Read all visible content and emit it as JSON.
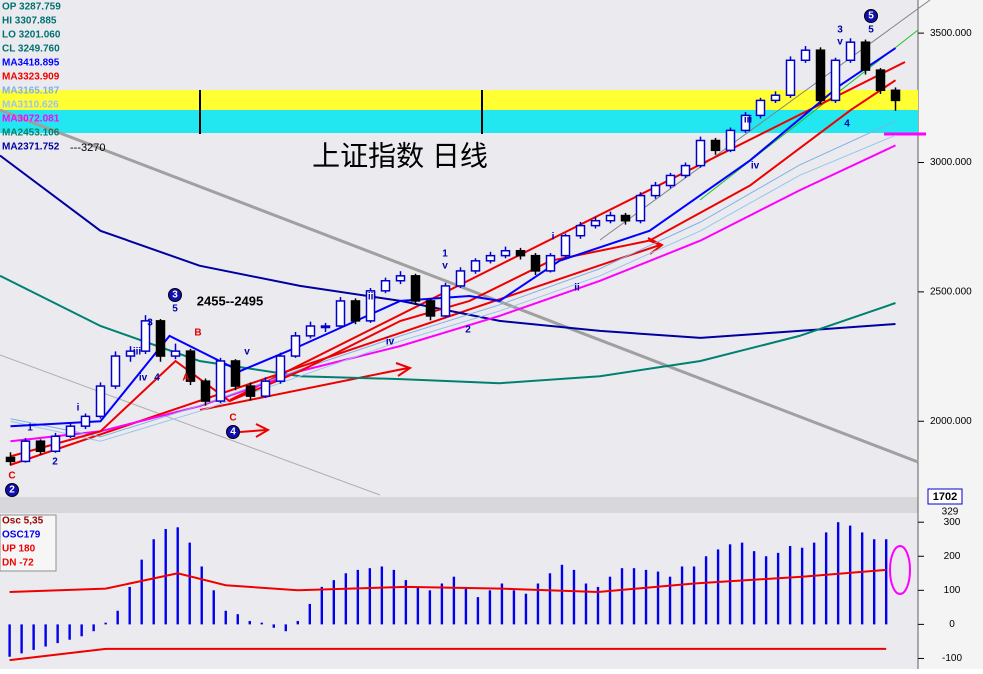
{
  "chart_data": [
    {
      "type": "candlestick",
      "title": "上证指数 日线",
      "range_label": "2455--2495",
      "level_label": "---3270",
      "value_tag": "1702",
      "header_lines": [
        "OP 3287.759",
        "HI 3307.885",
        "LO 3201.060",
        "CL 3249.760"
      ],
      "up_color": "#0000cc",
      "down_color": "#000000",
      "grid": false,
      "ylim": [
        1715,
        3628
      ],
      "yticks": [
        {
          "value": 3500,
          "label": "3500.000"
        },
        {
          "value": 3000,
          "label": "3000.000"
        },
        {
          "value": 2500,
          "label": "2500.000"
        },
        {
          "value": 2000,
          "label": "2000.000"
        }
      ],
      "xlim": [
        -0.7,
        60.3
      ],
      "ohlc": [
        [
          1860,
          1880,
          1830,
          1845
        ],
        [
          1845,
          1935,
          1840,
          1923
        ],
        [
          1923,
          1930,
          1870,
          1884
        ],
        [
          1884,
          1955,
          1878,
          1942
        ],
        [
          1942,
          1995,
          1935,
          1981
        ],
        [
          1981,
          2030,
          1970,
          2019
        ],
        [
          2019,
          2150,
          2010,
          2136
        ],
        [
          2136,
          2270,
          2125,
          2252
        ],
        [
          2252,
          2290,
          2230,
          2271
        ],
        [
          2271,
          2410,
          2260,
          2388
        ],
        [
          2388,
          2395,
          2230,
          2252
        ],
        [
          2252,
          2300,
          2240,
          2271
        ],
        [
          2271,
          2280,
          2140,
          2155
        ],
        [
          2155,
          2165,
          2060,
          2078
        ],
        [
          2078,
          2245,
          2070,
          2233
        ],
        [
          2233,
          2240,
          2120,
          2136
        ],
        [
          2136,
          2150,
          2080,
          2097
        ],
        [
          2097,
          2170,
          2090,
          2155
        ],
        [
          2155,
          2265,
          2145,
          2252
        ],
        [
          2252,
          2345,
          2245,
          2330
        ],
        [
          2330,
          2385,
          2320,
          2368
        ],
        [
          2368,
          2380,
          2345,
          2368
        ],
        [
          2368,
          2480,
          2360,
          2465
        ],
        [
          2465,
          2475,
          2375,
          2388
        ],
        [
          2388,
          2515,
          2380,
          2504
        ],
        [
          2504,
          2555,
          2495,
          2543
        ],
        [
          2543,
          2580,
          2530,
          2562
        ],
        [
          2562,
          2570,
          2450,
          2465
        ],
        [
          2465,
          2475,
          2390,
          2407
        ],
        [
          2407,
          2535,
          2400,
          2523
        ],
        [
          2523,
          2595,
          2515,
          2581
        ],
        [
          2581,
          2630,
          2570,
          2620
        ],
        [
          2620,
          2655,
          2610,
          2640
        ],
        [
          2640,
          2675,
          2630,
          2659
        ],
        [
          2659,
          2670,
          2625,
          2640
        ],
        [
          2640,
          2650,
          2565,
          2581
        ],
        [
          2581,
          2650,
          2575,
          2640
        ],
        [
          2640,
          2725,
          2630,
          2717
        ],
        [
          2717,
          2770,
          2705,
          2756
        ],
        [
          2756,
          2790,
          2745,
          2775
        ],
        [
          2775,
          2810,
          2765,
          2795
        ],
        [
          2795,
          2805,
          2760,
          2775
        ],
        [
          2775,
          2885,
          2765,
          2872
        ],
        [
          2872,
          2925,
          2860,
          2911
        ],
        [
          2911,
          2960,
          2900,
          2950
        ],
        [
          2950,
          3000,
          2940,
          2988
        ],
        [
          2988,
          3100,
          2980,
          3085
        ],
        [
          3085,
          3095,
          3030,
          3047
        ],
        [
          3047,
          3135,
          3040,
          3124
        ],
        [
          3124,
          3195,
          3115,
          3182
        ],
        [
          3182,
          3250,
          3170,
          3240
        ],
        [
          3240,
          3275,
          3230,
          3260
        ],
        [
          3260,
          3410,
          3250,
          3395
        ],
        [
          3395,
          3450,
          3385,
          3434
        ],
        [
          3434,
          3445,
          3225,
          3240
        ],
        [
          3240,
          3405,
          3230,
          3395
        ],
        [
          3395,
          3480,
          3385,
          3465
        ],
        [
          3465,
          3475,
          3340,
          3357
        ],
        [
          3357,
          3365,
          3265,
          3279
        ],
        [
          3279,
          3290,
          3200,
          3240
        ]
      ],
      "series": [
        {
          "name": "MA3418.895",
          "color": "#0000ff",
          "x": [
            0,
            6,
            10.6,
            15.3,
            19.3,
            26,
            30.6,
            32.6,
            36.6,
            42.6,
            49.3,
            55.3,
            59
          ],
          "values": [
            1981,
            2000,
            2330,
            2194,
            2291,
            2465,
            2484,
            2465,
            2620,
            2736,
            3008,
            3298,
            3442
          ]
        },
        {
          "name": "MA3323.909",
          "color": "#ee0000",
          "x": [
            0,
            6,
            11,
            14.6,
            19.3,
            26,
            30.6,
            36,
            42.6,
            49.3,
            56,
            59
          ],
          "values": [
            1864,
            1961,
            2233,
            2078,
            2194,
            2388,
            2465,
            2620,
            2698,
            2911,
            3202,
            3318
          ]
        },
        {
          "name": "MA3165.187",
          "color": "#7fb0e8",
          "x": [
            0,
            6,
            12.6,
            19.3,
            26,
            32.6,
            39.3,
            46,
            52.6,
            59
          ],
          "values": [
            2010,
            1940,
            2060,
            2200,
            2330,
            2450,
            2590,
            2770,
            2990,
            3160
          ]
        },
        {
          "name": "MA3110.626",
          "color": "#9cc4ee",
          "x": [
            0,
            6,
            12.6,
            19.3,
            26,
            32.6,
            39.3,
            46,
            52.6,
            59
          ],
          "values": [
            2000,
            1923,
            2039,
            2174,
            2310,
            2426,
            2562,
            2736,
            2950,
            3105
          ]
        },
        {
          "name": "MA3072.081",
          "color": "#ff00ff",
          "x": [
            0,
            6,
            12.6,
            19.3,
            26,
            32.6,
            39.3,
            46,
            52.6,
            59
          ],
          "values": [
            1923,
            1961,
            2058,
            2194,
            2291,
            2407,
            2543,
            2698,
            2892,
            3066
          ]
        },
        {
          "name": "MA2453.106",
          "color": "#008070",
          "x": [
            -0.7,
            6,
            12.6,
            19.3,
            26,
            32.6,
            39.3,
            46,
            52.6,
            59
          ],
          "values": [
            2562,
            2368,
            2233,
            2174,
            2163,
            2147,
            2174,
            2233,
            2330,
            2457
          ]
        },
        {
          "name": "MA2371.752",
          "color": "#0000a0",
          "x": [
            -0.7,
            6,
            12.6,
            19.3,
            26,
            32.6,
            39.3,
            46,
            52.6,
            59
          ],
          "values": [
            3027,
            2736,
            2601,
            2523,
            2465,
            2388,
            2349,
            2322,
            2349,
            2376
          ]
        }
      ],
      "annotations": [
        "C",
        "2",
        "1",
        "2",
        "i",
        "3",
        "iii",
        "iv",
        "4",
        "5",
        "3",
        "B",
        "A",
        "C",
        "4",
        "v",
        "iii",
        "iv",
        "1",
        "v",
        "2",
        "i",
        "ii",
        "iii",
        "iv",
        "3",
        "v",
        "5",
        "5",
        "4"
      ]
    },
    {
      "type": "bar",
      "title": "Osc 5,35",
      "value_tag": "329",
      "ylim": [
        -131,
        327
      ],
      "yticks": [
        300,
        200,
        100,
        0,
        -100
      ],
      "xlim": [
        -0.8,
        75.4
      ],
      "series": [
        {
          "name": "OSC179",
          "color": "#0000ee",
          "values": [
            -95,
            -85,
            -75,
            -65,
            -55,
            -45,
            -35,
            -20,
            5,
            40,
            110,
            190,
            250,
            280,
            285,
            240,
            170,
            100,
            40,
            30,
            10,
            5,
            -10,
            -20,
            10,
            60,
            110,
            130,
            150,
            160,
            165,
            170,
            160,
            130,
            110,
            100,
            120,
            140,
            110,
            80,
            100,
            120,
            100,
            90,
            120,
            150,
            175,
            160,
            120,
            110,
            140,
            165,
            165,
            160,
            155,
            140,
            170,
            170,
            200,
            220,
            235,
            240,
            215,
            200,
            210,
            230,
            225,
            240,
            270,
            300,
            290,
            270,
            250,
            250
          ]
        },
        {
          "name": "UP 180",
          "type": "line",
          "color": "#ee0000",
          "x": [
            0,
            8,
            14,
            18,
            24,
            33,
            41,
            49,
            57,
            66,
            73
          ],
          "values": [
            95,
            105,
            150,
            115,
            100,
            110,
            105,
            95,
            120,
            140,
            160
          ]
        },
        {
          "name": "DN -72",
          "type": "line",
          "color": "#ee0000",
          "x": [
            0,
            8,
            73
          ],
          "values": [
            -105,
            -72,
            -72
          ]
        }
      ]
    }
  ]
}
